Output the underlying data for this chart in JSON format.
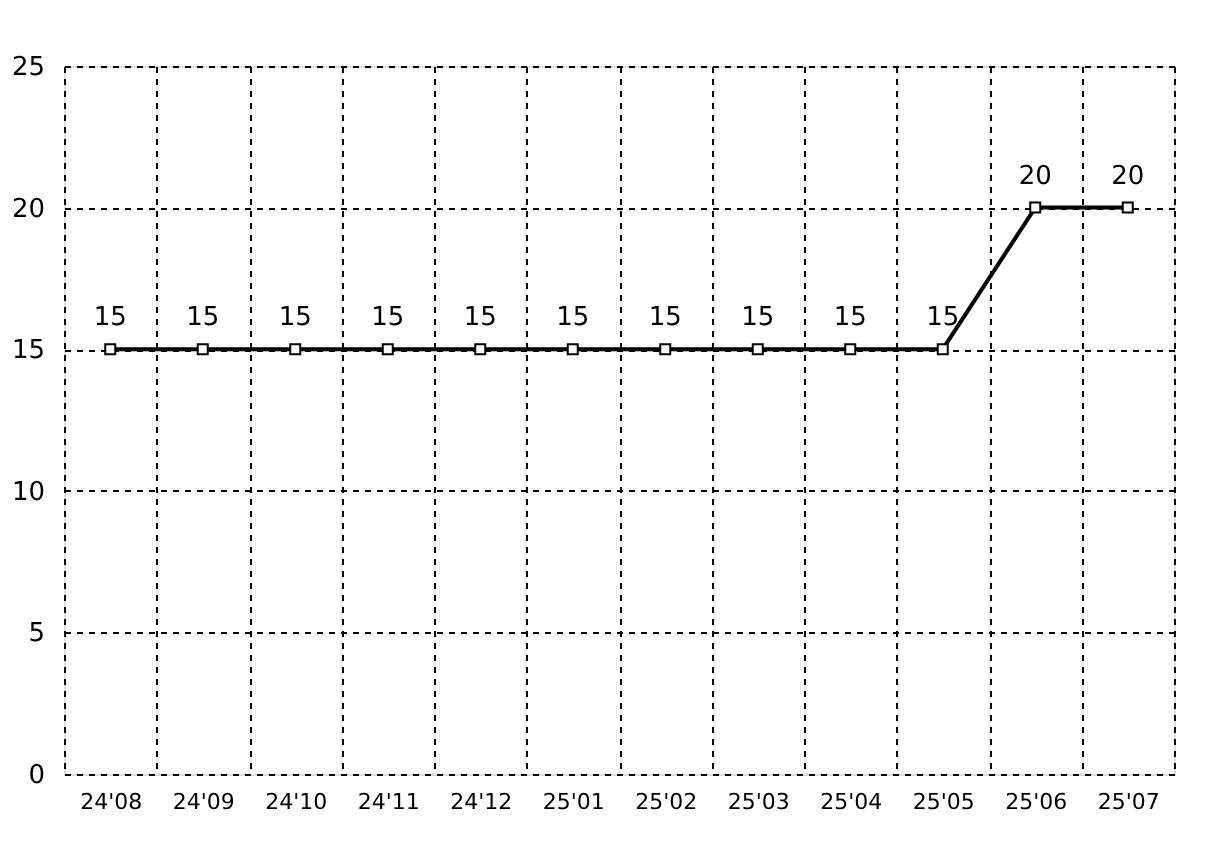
{
  "chart_data": {
    "type": "line",
    "categories": [
      "24'08",
      "24'09",
      "24'10",
      "24'11",
      "24'12",
      "25'01",
      "25'02",
      "25'03",
      "25'04",
      "25'05",
      "25'06",
      "25'07"
    ],
    "series": [
      {
        "color": "#000000",
        "values": [
          15,
          15,
          15,
          15,
          15,
          15,
          15,
          15,
          15,
          15,
          20,
          20
        ]
      }
    ],
    "ylim": [
      0,
      25
    ],
    "yticks": [
      0,
      5,
      10,
      15,
      20,
      25
    ],
    "grid": true,
    "marker": "square",
    "line_style": "solid",
    "data_labels": true
  }
}
